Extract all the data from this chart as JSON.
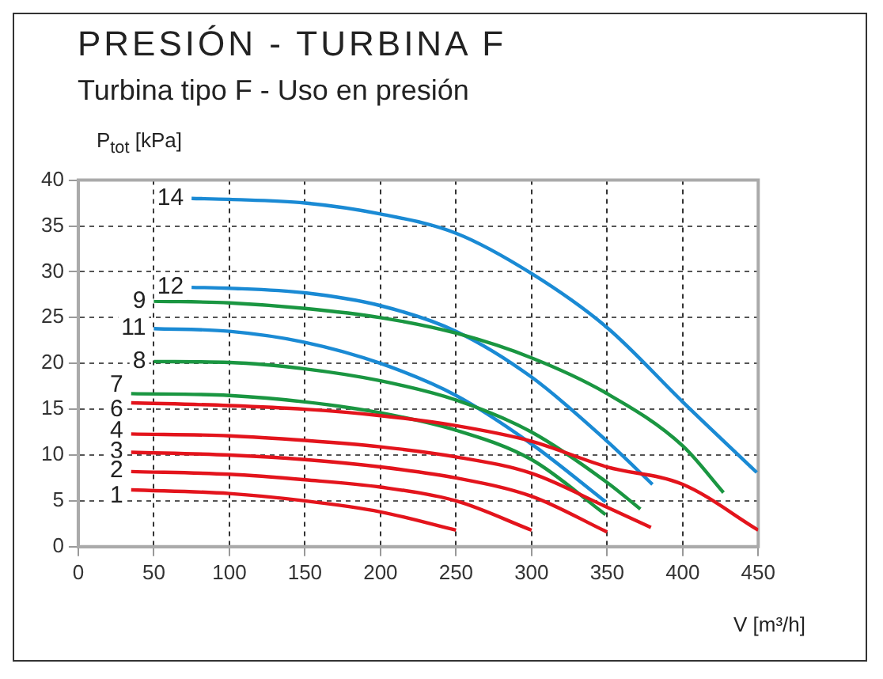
{
  "chart_data": {
    "type": "line",
    "title": "PRESIÓN - TURBINA F",
    "subtitle": "Turbina tipo F - Uso en presión",
    "ylabel": "P$_{tot}$ [kPa]",
    "xlabel": "V [m³/h]",
    "xlim": [
      0,
      450
    ],
    "xticks": [
      0,
      50,
      100,
      150,
      200,
      250,
      300,
      350,
      400,
      450
    ],
    "ylim": [
      0,
      40
    ],
    "yticks": [
      0,
      5,
      10,
      15,
      20,
      25,
      30,
      35,
      40
    ],
    "grid": true,
    "legend": false,
    "marker": "none",
    "line_style": "solid",
    "series": [
      {
        "name": "1",
        "color": "#e3141c",
        "x": [
          35,
          100,
          150,
          200,
          250
        ],
        "values": [
          6.2,
          5.8,
          5.0,
          3.8,
          1.8
        ]
      },
      {
        "name": "2",
        "color": "#e3141c",
        "x": [
          35,
          100,
          150,
          200,
          250,
          300
        ],
        "values": [
          8.2,
          7.9,
          7.3,
          6.5,
          5.0,
          1.8
        ]
      },
      {
        "name": "3",
        "color": "#e3141c",
        "x": [
          35,
          100,
          150,
          200,
          250,
          300,
          350
        ],
        "values": [
          10.3,
          10.0,
          9.5,
          8.7,
          7.5,
          5.5,
          1.6
        ]
      },
      {
        "name": "4",
        "color": "#e3141c",
        "x": [
          35,
          100,
          150,
          200,
          250,
          300,
          350,
          379
        ],
        "values": [
          12.3,
          12.1,
          11.6,
          10.9,
          9.8,
          8.0,
          4.3,
          2.1
        ]
      },
      {
        "name": "6",
        "color": "#e3141c",
        "x": [
          35,
          100,
          150,
          200,
          250,
          300,
          350,
          400,
          450
        ],
        "values": [
          15.7,
          15.4,
          15.0,
          14.3,
          13.2,
          11.5,
          8.7,
          6.8,
          1.8
        ]
      },
      {
        "name": "7",
        "color": "#1a9641",
        "x": [
          35,
          100,
          150,
          200,
          250,
          300,
          349
        ],
        "values": [
          16.7,
          16.5,
          15.8,
          14.6,
          12.7,
          9.5,
          3.5
        ]
      },
      {
        "name": "8",
        "color": "#1a9641",
        "x": [
          50,
          100,
          150,
          200,
          250,
          300,
          350,
          372
        ],
        "values": [
          20.2,
          20.1,
          19.4,
          18.1,
          16.0,
          12.5,
          7.0,
          4.1
        ]
      },
      {
        "name": "9",
        "color": "#1a9641",
        "x": [
          50,
          100,
          150,
          200,
          250,
          300,
          350,
          400,
          427
        ],
        "values": [
          26.8,
          26.6,
          26.0,
          25.0,
          23.3,
          20.6,
          16.7,
          11.0,
          5.9
        ]
      },
      {
        "name": "11",
        "color": "#1a8ad4",
        "x": [
          50,
          100,
          150,
          200,
          250,
          300,
          349
        ],
        "values": [
          23.8,
          23.5,
          22.3,
          20.0,
          16.5,
          11.2,
          4.9
        ]
      },
      {
        "name": "12",
        "color": "#1a8ad4",
        "x": [
          75,
          100,
          150,
          200,
          250,
          300,
          350,
          380
        ],
        "values": [
          28.3,
          28.2,
          27.7,
          26.3,
          23.5,
          18.5,
          11.5,
          6.8
        ]
      },
      {
        "name": "14",
        "color": "#1a8ad4",
        "x": [
          75,
          100,
          150,
          200,
          250,
          300,
          350,
          400,
          449
        ],
        "values": [
          38.0,
          37.9,
          37.5,
          36.3,
          34.2,
          29.8,
          23.9,
          15.8,
          8.1
        ]
      }
    ]
  }
}
